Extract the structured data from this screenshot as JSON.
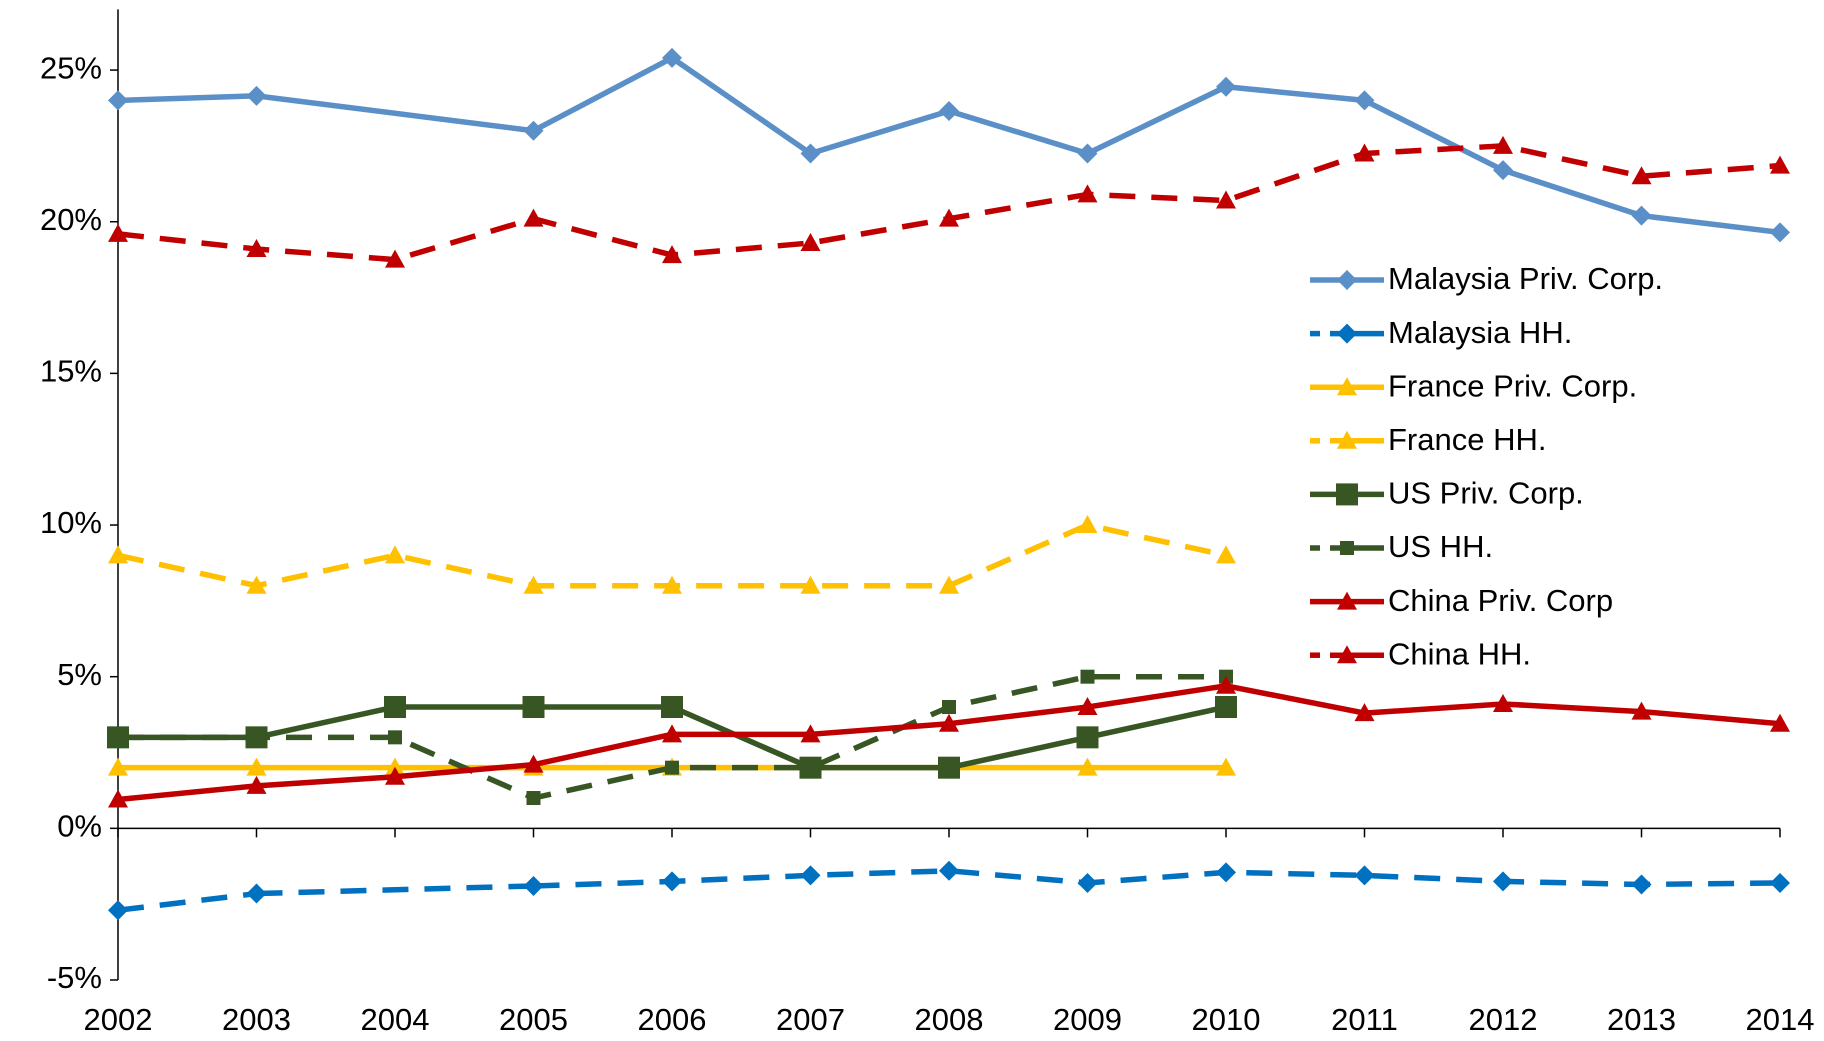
{
  "chart_data": {
    "type": "line",
    "categories": [
      "2002",
      "2003",
      "2004",
      "2005",
      "2006",
      "2007",
      "2008",
      "2009",
      "2010",
      "2011",
      "2012",
      "2013",
      "2014"
    ],
    "ylim": [
      -5,
      27
    ],
    "yticks": [
      {
        "value": -5,
        "label": "-5%"
      },
      {
        "value": 0,
        "label": "0%"
      },
      {
        "value": 5,
        "label": "5%"
      },
      {
        "value": 10,
        "label": "10%"
      },
      {
        "value": 15,
        "label": "15%"
      },
      {
        "value": 20,
        "label": "20%"
      },
      {
        "value": 25,
        "label": "25%"
      }
    ],
    "grid": false,
    "connect_gaps": true,
    "legend": "right",
    "series": [
      {
        "name": "Malaysia Priv. Corp.",
        "color": "#5b8fc7",
        "dash": false,
        "marker": "diamond",
        "values": [
          24.0,
          24.15,
          null,
          23.0,
          25.4,
          22.25,
          23.65,
          22.25,
          24.45,
          24.0,
          21.7,
          20.2,
          19.65
        ]
      },
      {
        "name": "Malaysia HH.",
        "color": "#0070c0",
        "dash": true,
        "marker": "diamond",
        "values": [
          -2.7,
          -2.15,
          null,
          -1.9,
          -1.75,
          -1.55,
          -1.4,
          -1.8,
          -1.45,
          -1.55,
          -1.75,
          -1.85,
          -1.8
        ]
      },
      {
        "name": "France Priv. Corp.",
        "color": "#ffc000",
        "dash": false,
        "marker": "triangle",
        "values": [
          2,
          2,
          2,
          2,
          2,
          2,
          2,
          2,
          2,
          null,
          null,
          null,
          null
        ]
      },
      {
        "name": "France HH.",
        "color": "#ffc000",
        "dash": true,
        "marker": "triangle",
        "values": [
          9,
          8,
          9,
          8,
          8,
          8,
          8,
          10,
          9,
          null,
          null,
          null,
          null
        ]
      },
      {
        "name": "US Priv. Corp.",
        "color": "#375623",
        "dash": false,
        "marker": "square",
        "values": [
          3,
          3,
          4,
          4,
          4,
          2,
          2,
          3,
          4,
          null,
          null,
          null,
          null
        ]
      },
      {
        "name": "US HH.",
        "color": "#375623",
        "dash": true,
        "marker": "small-square",
        "values": [
          3,
          3,
          3,
          1,
          2,
          2,
          4,
          5,
          5,
          null,
          null,
          null,
          null
        ]
      },
      {
        "name": "China Priv. Corp",
        "color": "#c00000",
        "dash": false,
        "marker": "triangle",
        "values": [
          0.95,
          1.4,
          1.7,
          2.1,
          3.1,
          3.1,
          3.45,
          4.0,
          4.7,
          3.8,
          4.1,
          3.85,
          3.45
        ]
      },
      {
        "name": "China HH.",
        "color": "#c00000",
        "dash": true,
        "marker": "triangle",
        "values": [
          19.6,
          19.1,
          18.75,
          20.1,
          18.9,
          19.3,
          20.1,
          20.9,
          20.7,
          22.25,
          22.5,
          21.5,
          21.85
        ]
      }
    ]
  }
}
